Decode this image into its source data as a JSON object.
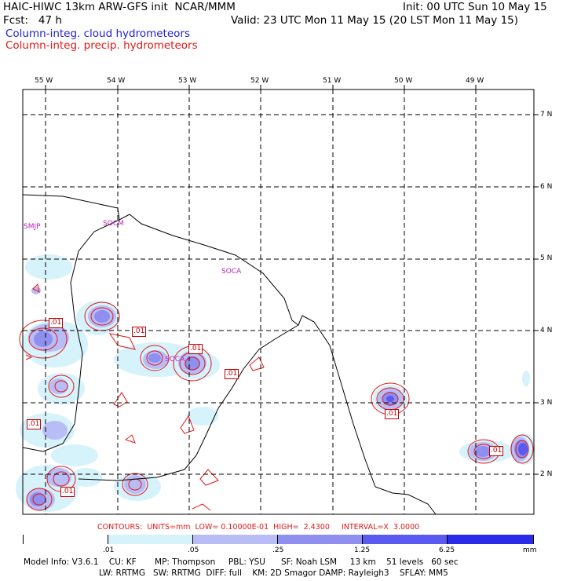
{
  "header": {
    "line1_left": "HAIC-HIWC 13km ARW-GFS init  NCAR/MMM",
    "line1_right": "Init: 00 UTC Sun 10 May 15",
    "line2_left": "Fcst:   47 h",
    "line2_right": "Valid: 23 UTC Mon 11 May 15 (20 LST Mon 11 May 15)",
    "legend_cloud": "Column-integ. cloud hydrometeors",
    "legend_precip": "Column-integ. precip. hydrometeors",
    "legend_colors": {
      "cloud": "#1f1fd0",
      "precip": "#e01818"
    }
  },
  "map": {
    "lon_labels": [
      "55 W",
      "54 W",
      "53 W",
      "52 W",
      "51 W",
      "50 W",
      "49 W"
    ],
    "lat_labels": [
      "7 N",
      "6 N",
      "5 N",
      "4 N",
      "3 N",
      "2 N"
    ],
    "stations": [
      "SMJP",
      "SOCM",
      "SOCA",
      "SOCA"
    ],
    "contour_labels": [
      ".01",
      ".01",
      ".01",
      ".01",
      ".01",
      ".01",
      ".01",
      ".01",
      ".01"
    ]
  },
  "contours_note": "CONTOURS:  UNITS=mm  LOW= 0.10000E-01  HIGH=  2.4300     INTERVAL=X  3.0000",
  "colorbar": {
    "ticks": [
      ".01",
      ".05",
      ".25",
      "1.25",
      "6.25",
      "mm"
    ],
    "colors": [
      "#ffffff",
      "#d6f2fb",
      "#b9bdf5",
      "#8f8ff0",
      "#5a5af0",
      "#2a2ae8",
      "#1212e6"
    ]
  },
  "model_info": {
    "line1": "Model Info: V3.6.1    CU: KF       MP: Thompson     PBL: YSU      SF: Noah LSM     13 km    51 levels   60 sec",
    "line2": "LW: RRTMG   SW: RRTMG  DIFF: full    KM: 2D Smagor DAMP: Rayleigh3    SFLAY: MM5"
  }
}
